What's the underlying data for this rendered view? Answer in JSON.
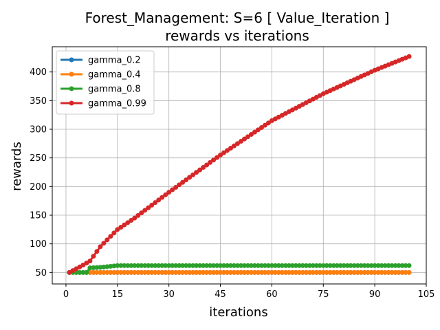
{
  "chart_data": {
    "type": "line",
    "title_line1": "Forest_Management: S=6 [ Value_Iteration ]",
    "title_line2": "rewards vs iterations",
    "xlabel": "iterations",
    "ylabel": "rewards",
    "xlim": [
      -4,
      105
    ],
    "ylim": [
      30,
      444
    ],
    "xticks": [
      0,
      15,
      30,
      45,
      60,
      75,
      90,
      105
    ],
    "yticks": [
      50,
      100,
      150,
      200,
      250,
      300,
      350,
      400
    ],
    "grid": true,
    "legend_position": "top-left",
    "x_range": [
      1,
      100
    ],
    "series": [
      {
        "name": "gamma_0.2",
        "color": "#1f77b4",
        "start": 50,
        "plateau": 50,
        "plateau_from": 2
      },
      {
        "name": "gamma_0.4",
        "color": "#ff7f0e",
        "start": 50,
        "plateau": 50,
        "plateau_from": 2
      },
      {
        "name": "gamma_0.8",
        "color": "#2ca02c",
        "segments": [
          [
            1,
            50
          ],
          [
            6,
            50
          ],
          [
            7,
            58
          ],
          [
            10,
            59
          ],
          [
            15,
            62
          ],
          [
            100,
            62
          ]
        ]
      },
      {
        "name": "gamma_0.99",
        "color": "#d62728",
        "segments": [
          [
            1,
            50
          ],
          [
            5,
            63
          ],
          [
            7,
            70
          ],
          [
            10,
            95
          ],
          [
            15,
            125
          ],
          [
            20,
            145
          ],
          [
            30,
            190
          ],
          [
            45,
            255
          ],
          [
            60,
            315
          ],
          [
            75,
            362
          ],
          [
            90,
            403
          ],
          [
            100,
            427
          ]
        ]
      }
    ]
  }
}
